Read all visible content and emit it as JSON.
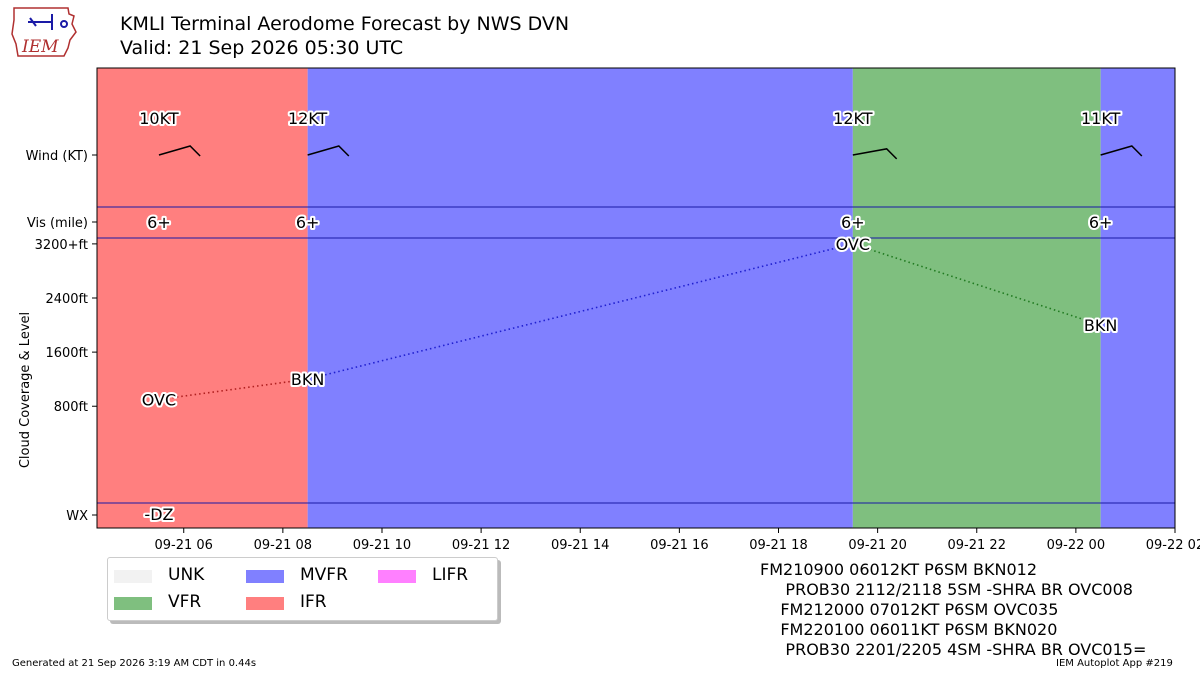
{
  "header": {
    "logo_text": "IEM",
    "title": "KMLI Terminal Aerodome Forecast by NWS DVN",
    "subtitle": "Valid: 21 Sep 2026 05:30 UTC"
  },
  "colors": {
    "VFR": "#7fbf7f",
    "MVFR": "#8080ff",
    "IFR": "#ff7f7f",
    "LIFR": "#ff80ff",
    "UNK": "#f2f2f2",
    "separator": "#1a1aa6"
  },
  "chart_data": {
    "type": "line",
    "x_unit": "hours after 2026-09-21 05:00 UTC",
    "x_range": [
      -0.75,
      21.0
    ],
    "x_ticks": [
      {
        "x": 1,
        "label": "09-21 06"
      },
      {
        "x": 3,
        "label": "09-21 08"
      },
      {
        "x": 5,
        "label": "09-21 10"
      },
      {
        "x": 7,
        "label": "09-21 12"
      },
      {
        "x": 9,
        "label": "09-21 14"
      },
      {
        "x": 11,
        "label": "09-21 16"
      },
      {
        "x": 13,
        "label": "09-21 18"
      },
      {
        "x": 15,
        "label": "09-21 20"
      },
      {
        "x": 17,
        "label": "09-21 22"
      },
      {
        "x": 19,
        "label": "09-22 00"
      },
      {
        "x": 21,
        "label": "09-22 02"
      }
    ],
    "y_range": [
      -1000,
      5800
    ],
    "y_ticks": [
      {
        "y": 800,
        "label": "800ft"
      },
      {
        "y": 1600,
        "label": "1600ft"
      },
      {
        "y": 2400,
        "label": "2400ft"
      },
      {
        "y": 3200,
        "label": "3200+ft"
      }
    ],
    "row_labels": {
      "wx": "WX",
      "vis": "Vis (mile)",
      "wind": "Wind (KT)"
    },
    "ylabel": "Cloud Coverage & Level",
    "category_bands": [
      {
        "start": -0.75,
        "end": 3.5,
        "category": "IFR"
      },
      {
        "start": 3.5,
        "end": 14.5,
        "category": "MVFR"
      },
      {
        "start": 14.5,
        "end": 19.5,
        "category": "VFR"
      },
      {
        "start": 19.5,
        "end": 21.0,
        "category": "MVFR"
      }
    ],
    "forecast_points": [
      {
        "x": 0.5,
        "wind_label": "10KT",
        "wind_dir": 60,
        "vis": "6+",
        "cloud_label": "OVC",
        "cloud_level": 900,
        "wx": "-DZ",
        "category": "IFR"
      },
      {
        "x": 3.5,
        "wind_label": "12KT",
        "wind_dir": 60,
        "vis": "6+",
        "cloud_label": "BKN",
        "cloud_level": 1200,
        "wx": "",
        "category": "MVFR"
      },
      {
        "x": 14.5,
        "wind_label": "12KT",
        "wind_dir": 70,
        "vis": "6+",
        "cloud_label": "OVC",
        "cloud_level": 3200,
        "wx": "",
        "category": "VFR"
      },
      {
        "x": 19.5,
        "wind_label": "11KT",
        "wind_dir": 60,
        "vis": "6+",
        "cloud_label": "BKN",
        "cloud_level": 2000,
        "wx": "",
        "category": "MVFR"
      }
    ]
  },
  "legend": {
    "items": [
      {
        "label": "UNK",
        "category": "UNK"
      },
      {
        "label": "VFR",
        "category": "VFR"
      },
      {
        "label": "MVFR",
        "category": "MVFR"
      },
      {
        "label": "IFR",
        "category": "IFR"
      },
      {
        "label": "LIFR",
        "category": "LIFR"
      }
    ]
  },
  "taf_text": {
    "lines": [
      "FM210900 06012KT P6SM BKN012",
      "     PROB30 2112/2118 5SM -SHRA BR OVC008",
      "    FM212000 07012KT P6SM OVC035",
      "    FM220100 06011KT P6SM BKN020",
      "     PROB30 2201/2205 4SM -SHRA BR OVC015="
    ]
  },
  "footer": {
    "generated": "Generated at 21 Sep 2026 3:19 AM CDT in 0.44s",
    "app": "IEM Autoplot App #219"
  }
}
